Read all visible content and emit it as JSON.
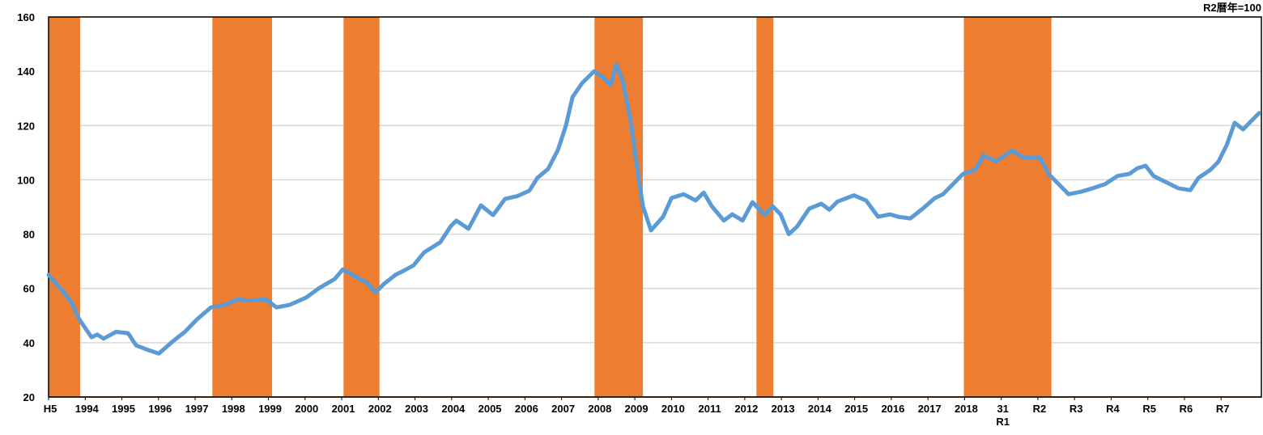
{
  "chart_data": {
    "type": "line",
    "unit_note": "R2暦年=100",
    "xlim": [
      1993,
      2026.1
    ],
    "xticks": [
      {
        "value": 1993,
        "label": "H5"
      },
      1994,
      1995,
      1996,
      1997,
      1998,
      1999,
      2000,
      2001,
      2002,
      2003,
      2004,
      2005,
      2006,
      2007,
      2008,
      2009,
      2010,
      2011,
      2012,
      2013,
      2014,
      2015,
      2016,
      2017,
      2018,
      {
        "value": 2019,
        "label": "31\nR1"
      },
      {
        "value": 2020,
        "label": "R2"
      },
      {
        "value": 2021,
        "label": "R3"
      },
      {
        "value": 2022,
        "label": "R4"
      },
      {
        "value": 2023,
        "label": "R5"
      },
      {
        "value": 2024,
        "label": "R6"
      },
      {
        "value": 2025,
        "label": "R7"
      }
    ],
    "ylim": [
      20,
      160
    ],
    "yticks": [
      20,
      40,
      60,
      80,
      100,
      120,
      140,
      160
    ],
    "grid": true,
    "shaded_ranges": [
      [
        1993.0,
        1993.86
      ],
      [
        1997.47,
        1999.1
      ],
      [
        2001.05,
        2002.03
      ],
      [
        2007.9,
        2009.22
      ],
      [
        2012.32,
        2012.78
      ],
      [
        2017.98,
        2020.37
      ]
    ],
    "shade_color": "#ed7d31",
    "series": [
      {
        "color": "#5b9bd5",
        "x": [
          1993.0,
          1993.29,
          1993.62,
          1993.84,
          1994.17,
          1994.33,
          1994.5,
          1994.84,
          1995.17,
          1995.39,
          1995.72,
          1996.01,
          1996.39,
          1996.72,
          1997.05,
          1997.43,
          1997.82,
          1998.16,
          1998.49,
          1998.93,
          1999.22,
          1999.59,
          2000.04,
          2000.37,
          2000.81,
          2001.03,
          2001.37,
          2001.7,
          2001.92,
          2002.14,
          2002.47,
          2002.69,
          2002.96,
          2003.25,
          2003.69,
          2003.98,
          2004.13,
          2004.46,
          2004.8,
          2005.13,
          2005.46,
          2005.79,
          2006.12,
          2006.34,
          2006.63,
          2006.9,
          2007.12,
          2007.3,
          2007.56,
          2007.89,
          2008.11,
          2008.34,
          2008.49,
          2008.67,
          2008.89,
          2009.04,
          2009.22,
          2009.44,
          2009.77,
          2010.0,
          2010.33,
          2010.66,
          2010.88,
          2011.1,
          2011.43,
          2011.66,
          2011.94,
          2012.21,
          2012.54,
          2012.76,
          2012.98,
          2013.2,
          2013.43,
          2013.76,
          2014.09,
          2014.31,
          2014.53,
          2014.98,
          2015.31,
          2015.64,
          2015.97,
          2016.19,
          2016.52,
          2016.86,
          2017.19,
          2017.41,
          2017.63,
          2017.96,
          2018.29,
          2018.52,
          2018.85,
          2019.29,
          2019.62,
          2020.06,
          2020.29,
          2020.51,
          2020.84,
          2021.17,
          2021.5,
          2021.83,
          2022.17,
          2022.5,
          2022.72,
          2022.94,
          2023.16,
          2023.49,
          2023.83,
          2024.16,
          2024.38,
          2024.71,
          2024.93,
          2025.15,
          2025.37,
          2025.6,
          2025.82,
          2026.04
        ],
        "values": [
          65,
          60.5,
          55,
          48.6,
          42,
          43,
          41.5,
          44,
          43.5,
          39,
          37.3,
          36,
          40.5,
          44,
          48.6,
          53,
          54,
          56,
          55.5,
          56,
          53,
          54,
          56.7,
          60,
          63.5,
          67,
          64.4,
          62,
          58.5,
          61.5,
          65,
          66.5,
          68.5,
          73.3,
          77,
          83,
          85,
          82,
          90.6,
          87,
          93,
          94,
          96,
          100.7,
          104,
          111,
          120,
          130.5,
          135.6,
          140,
          138,
          135,
          142.4,
          136.5,
          121.6,
          106.7,
          90.3,
          81.4,
          86.4,
          93.3,
          94.7,
          92.4,
          95.3,
          90.3,
          85,
          87.3,
          85,
          91.8,
          87,
          90.3,
          87.3,
          80,
          82.8,
          89.4,
          91.2,
          89,
          92,
          94.3,
          92.4,
          86.4,
          87.3,
          86.4,
          85.8,
          89.4,
          93.3,
          94.7,
          97.7,
          102.2,
          103.7,
          109,
          106.7,
          110.8,
          108.2,
          108.2,
          102.2,
          99.2,
          94.7,
          95.6,
          96.9,
          98.4,
          101.4,
          102.2,
          104.3,
          105.2,
          101.4,
          99.2,
          96.9,
          96.2,
          100.7,
          103.7,
          106.7,
          112.7,
          121,
          118.6,
          121.6,
          124.6
        ]
      }
    ]
  }
}
